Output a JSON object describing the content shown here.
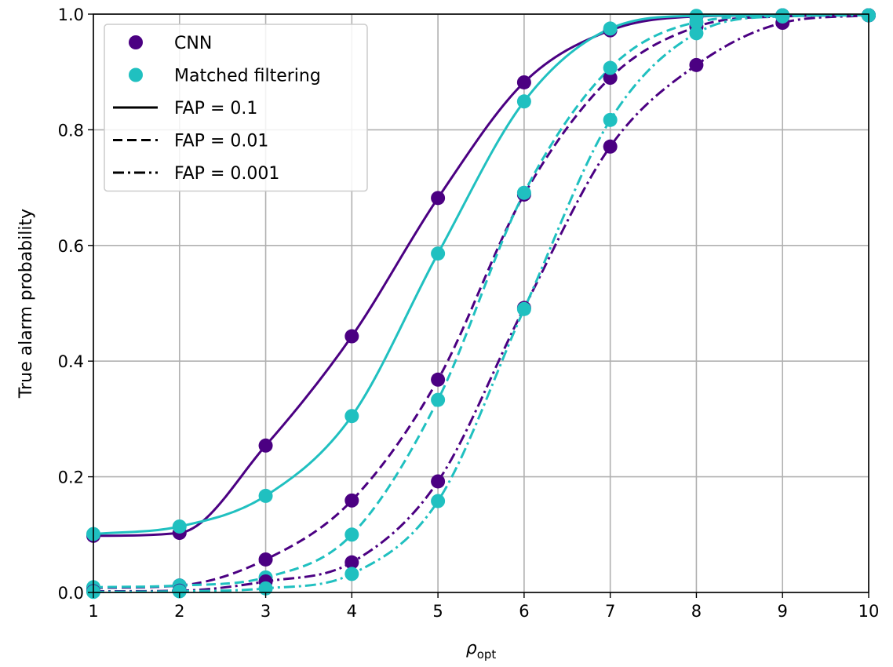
{
  "chart_data": {
    "type": "line",
    "title": "",
    "xlabel": "ρ",
    "xlabel_sub": "opt",
    "ylabel": "True alarm probability",
    "xlim": [
      1,
      10
    ],
    "ylim": [
      0.0,
      1.0
    ],
    "xticks": [
      "1",
      "2",
      "3",
      "4",
      "5",
      "6",
      "7",
      "8",
      "9",
      "10"
    ],
    "yticks": [
      "0.0",
      "0.2",
      "0.4",
      "0.6",
      "0.8",
      "1.0"
    ],
    "grid": true,
    "legend_position": "upper-left",
    "x": [
      1,
      2,
      3,
      4,
      5,
      6,
      7,
      8,
      9,
      10
    ],
    "colors": {
      "CNN": "#4b0082",
      "Matched filtering": "#20c0c0"
    },
    "legend": [
      {
        "label": "CNN",
        "kind": "marker",
        "color": "#4b0082"
      },
      {
        "label": "Matched filtering",
        "kind": "marker",
        "color": "#20c0c0"
      },
      {
        "label": "FAP = 0.1",
        "kind": "line",
        "dash": "solid"
      },
      {
        "label": "FAP = 0.01",
        "kind": "line",
        "dash": "dashed"
      },
      {
        "label": "FAP = 0.001",
        "kind": "line",
        "dash": "dashdot"
      }
    ],
    "series": [
      {
        "method": "CNN",
        "fap": "FAP = 0.1",
        "values": [
          0.098,
          0.103,
          0.254,
          0.443,
          0.682,
          0.882,
          0.972,
          0.996,
          0.998,
          0.998
        ]
      },
      {
        "method": "Matched filtering",
        "fap": "FAP = 0.1",
        "values": [
          0.101,
          0.114,
          0.167,
          0.305,
          0.586,
          0.849,
          0.975,
          0.997,
          0.998,
          0.998
        ]
      },
      {
        "method": "CNN",
        "fap": "FAP = 0.01",
        "values": [
          0.008,
          0.012,
          0.057,
          0.159,
          0.368,
          0.688,
          0.89,
          0.978,
          0.996,
          0.998
        ]
      },
      {
        "method": "Matched filtering",
        "fap": "FAP = 0.01",
        "values": [
          0.009,
          0.012,
          0.026,
          0.1,
          0.333,
          0.691,
          0.907,
          0.986,
          0.997,
          0.998
        ]
      },
      {
        "method": "CNN",
        "fap": "FAP = 0.001",
        "values": [
          0.002,
          0.003,
          0.019,
          0.052,
          0.192,
          0.492,
          0.771,
          0.912,
          0.985,
          0.998
        ]
      },
      {
        "method": "Matched filtering",
        "fap": "FAP = 0.001",
        "values": [
          0.001,
          0.002,
          0.007,
          0.032,
          0.158,
          0.49,
          0.817,
          0.967,
          0.996,
          0.998
        ]
      }
    ]
  }
}
